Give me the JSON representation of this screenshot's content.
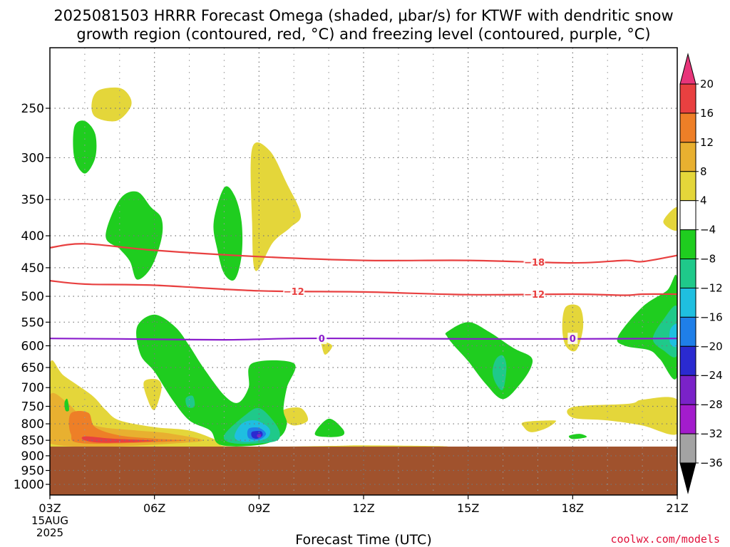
{
  "chart_data": {
    "type": "heatmap",
    "title_lines": [
      "2025081503 HRRR Forecast Omega (shaded, μbar/s) for KTWF with dendritic snow",
      "growth region (contoured, red, °C) and freezing level (contoured, purple, °C)"
    ],
    "xlabel": "Forecast Time (UTC)",
    "ylabel": "",
    "credit": "coolwx.com/models",
    "x_ticks": [
      "03Z",
      "06Z",
      "09Z",
      "12Z",
      "15Z",
      "18Z",
      "21Z"
    ],
    "x_hours": [
      3,
      6,
      9,
      12,
      15,
      18,
      21
    ],
    "x_date_label": [
      "15AUG",
      "2025"
    ],
    "xlim": [
      3,
      21
    ],
    "y_ticks": [
      250,
      300,
      350,
      400,
      450,
      500,
      550,
      600,
      650,
      700,
      750,
      800,
      850,
      900,
      950,
      1000
    ],
    "ylim_hpa": [
      200,
      1040
    ],
    "y_scale": "log-pressure (inverted)",
    "grid": true,
    "terrain": {
      "surface_pressure_hpa": 870,
      "color": "#a0522d"
    },
    "colorbar": {
      "levels": [
        20,
        16,
        12,
        8,
        4,
        -4,
        -8,
        -12,
        -16,
        -20,
        -24,
        -28,
        -32,
        -36
      ],
      "colors": [
        "#e8357a",
        "#e84040",
        "#ee7f27",
        "#e8b030",
        "#e4d63a",
        "#ffffff",
        "#1fcd1f",
        "#1fc98a",
        "#1fbfe0",
        "#1f7fe8",
        "#2a2ad0",
        "#7a22c8",
        "#a31ccc",
        "#a3a3a3",
        "#000000"
      ],
      "extend": "both"
    },
    "contours": [
      {
        "name": "dendritic snow growth -18",
        "color": "#e84040",
        "value": -18,
        "label": "-18",
        "points": [
          [
            3.0,
            418
          ],
          [
            4.0,
            412
          ],
          [
            6.0,
            422
          ],
          [
            9.0,
            432
          ],
          [
            12.0,
            438
          ],
          [
            15.0,
            438
          ],
          [
            18.0,
            442
          ],
          [
            19.5,
            438
          ],
          [
            20.0,
            440
          ],
          [
            21.0,
            430
          ]
        ]
      },
      {
        "name": "dendritic snow growth -12",
        "color": "#e84040",
        "value": -12,
        "label": "-12",
        "points": [
          [
            3.0,
            472
          ],
          [
            4.0,
            478
          ],
          [
            6.0,
            480
          ],
          [
            9.0,
            490
          ],
          [
            12.0,
            492
          ],
          [
            15.0,
            497
          ],
          [
            18.0,
            496
          ],
          [
            19.5,
            498
          ],
          [
            20.0,
            496
          ],
          [
            21.0,
            496
          ]
        ]
      },
      {
        "name": "freezing level 0",
        "color": "#8a1ccc",
        "value": 0,
        "label": "0",
        "points": [
          [
            3.0,
            584
          ],
          [
            5.0,
            585
          ],
          [
            8.0,
            587
          ],
          [
            10.0,
            584
          ],
          [
            12.0,
            584
          ],
          [
            15.0,
            585
          ],
          [
            18.0,
            585
          ],
          [
            21.0,
            584
          ]
        ]
      }
    ],
    "contour_labels": [
      {
        "value": "-18",
        "hour": 16.9,
        "hpa": 441,
        "color": "#e84040"
      },
      {
        "value": "-12",
        "hour": 10.0,
        "hpa": 491,
        "color": "#e84040"
      },
      {
        "value": "-12",
        "hour": 16.9,
        "hpa": 496,
        "color": "#e84040"
      },
      {
        "value": "0",
        "hour": 10.8,
        "hpa": 584,
        "color": "#8a1ccc"
      },
      {
        "value": "0",
        "hour": 18.0,
        "hpa": 584,
        "color": "#8a1ccc"
      }
    ],
    "omega_regions": [
      {
        "level": "4 to 8",
        "color": "#e4d63a",
        "points": [
          [
            4.4,
            234
          ],
          [
            5.0,
            232
          ],
          [
            5.3,
            240
          ],
          [
            5.3,
            250
          ],
          [
            4.9,
            262
          ],
          [
            4.3,
            258
          ],
          [
            4.2,
            245
          ]
        ]
      },
      {
        "level": "4 to 8",
        "color": "#e4d63a",
        "points": [
          [
            8.8,
            290
          ],
          [
            9.3,
            292
          ],
          [
            9.8,
            330
          ],
          [
            10.2,
            370
          ],
          [
            9.9,
            388
          ],
          [
            9.4,
            410
          ],
          [
            8.9,
            455
          ],
          [
            8.8,
            380
          ]
        ]
      },
      {
        "level": "4 to 8",
        "color": "#e4d63a",
        "points": [
          [
            21.0,
            360
          ],
          [
            20.6,
            380
          ],
          [
            21.0,
            392
          ]
        ]
      },
      {
        "level": "4 to 8",
        "color": "#e4d63a",
        "points": [
          [
            17.8,
            520
          ],
          [
            18.2,
            520
          ],
          [
            18.3,
            560
          ],
          [
            18.1,
            610
          ],
          [
            17.8,
            600
          ],
          [
            17.7,
            560
          ]
        ]
      },
      {
        "level": "4 to 8",
        "color": "#e4d63a",
        "points": [
          [
            10.8,
            590
          ],
          [
            11.1,
            600
          ],
          [
            10.9,
            620
          ],
          [
            10.8,
            600
          ]
        ]
      },
      {
        "level": "4 to 8",
        "color": "#e4d63a",
        "points": [
          [
            5.7,
            685
          ],
          [
            6.1,
            680
          ],
          [
            6.2,
            705
          ],
          [
            6.0,
            760
          ],
          [
            5.8,
            730
          ]
        ]
      },
      {
        "level": "4 to 8",
        "color": "#e4d63a",
        "points": [
          [
            9.7,
            760
          ],
          [
            10.2,
            755
          ],
          [
            10.4,
            790
          ],
          [
            10.0,
            805
          ],
          [
            9.7,
            785
          ]
        ]
      },
      {
        "level": "4 to 8",
        "color": "#e4d63a",
        "points": [
          [
            16.6,
            795
          ],
          [
            17.4,
            790
          ],
          [
            17.5,
            795
          ],
          [
            17.2,
            815
          ],
          [
            16.8,
            825
          ],
          [
            16.6,
            810
          ]
        ]
      },
      {
        "level": "4 to 8",
        "color": "#e4d63a",
        "points": [
          [
            18.0,
            752
          ],
          [
            19.6,
            743
          ],
          [
            20.0,
            732
          ],
          [
            21.0,
            732
          ],
          [
            21.0,
            830
          ],
          [
            20.0,
            805
          ],
          [
            19.0,
            790
          ],
          [
            18.0,
            782
          ]
        ]
      },
      {
        "level": "4 to 8",
        "color": "#e4d63a",
        "points": [
          [
            3.0,
            642
          ],
          [
            3.4,
            670
          ],
          [
            4.2,
            720
          ],
          [
            4.6,
            760
          ],
          [
            5.0,
            790
          ],
          [
            6.0,
            810
          ],
          [
            7.0,
            820
          ],
          [
            7.8,
            850
          ],
          [
            8.2,
            870
          ],
          [
            11.0,
            868
          ],
          [
            12.0,
            866
          ],
          [
            14.0,
            870
          ],
          [
            3.0,
            870
          ]
        ]
      },
      {
        "level": "8 to 12",
        "color": "#e8b030",
        "points": [
          [
            3.0,
            720
          ],
          [
            3.5,
            740
          ],
          [
            4.0,
            790
          ],
          [
            4.5,
            810
          ],
          [
            5.5,
            820
          ],
          [
            6.5,
            830
          ],
          [
            7.2,
            855
          ],
          [
            3.0,
            860
          ]
        ]
      },
      {
        "level": "12 to 16",
        "color": "#ee7f27",
        "points": [
          [
            3.6,
            770
          ],
          [
            4.1,
            768
          ],
          [
            4.3,
            810
          ],
          [
            5.0,
            835
          ],
          [
            6.0,
            845
          ],
          [
            6.8,
            852
          ],
          [
            4.0,
            860
          ],
          [
            3.6,
            830
          ]
        ]
      },
      {
        "level": "16 to 20",
        "color": "#e84040",
        "points": [
          [
            4.0,
            838
          ],
          [
            4.8,
            845
          ],
          [
            6.0,
            852
          ],
          [
            4.6,
            858
          ],
          [
            4.0,
            850
          ]
        ]
      },
      {
        "level": "-8 to -4",
        "color": "#1fcd1f",
        "points": [
          [
            3.7,
            268
          ],
          [
            4.0,
            262
          ],
          [
            4.3,
            275
          ],
          [
            4.3,
            300
          ],
          [
            4.0,
            318
          ],
          [
            3.7,
            300
          ]
        ]
      },
      {
        "level": "-8 to -4",
        "color": "#1fcd1f",
        "points": [
          [
            5.0,
            350
          ],
          [
            5.5,
            340
          ],
          [
            5.9,
            360
          ],
          [
            6.2,
            375
          ],
          [
            6.2,
            405
          ],
          [
            5.9,
            450
          ],
          [
            5.5,
            470
          ],
          [
            5.3,
            440
          ],
          [
            5.0,
            420
          ],
          [
            4.6,
            400
          ]
        ]
      },
      {
        "level": "-8 to -4",
        "color": "#1fcd1f",
        "points": [
          [
            8.0,
            335
          ],
          [
            8.3,
            345
          ],
          [
            8.5,
            380
          ],
          [
            8.5,
            430
          ],
          [
            8.3,
            470
          ],
          [
            8.0,
            460
          ],
          [
            7.8,
            420
          ],
          [
            7.7,
            380
          ]
        ]
      },
      {
        "level": "-8 to -4",
        "color": "#1fcd1f",
        "points": [
          [
            5.5,
            560
          ],
          [
            6.0,
            535
          ],
          [
            6.6,
            560
          ],
          [
            7.0,
            600
          ],
          [
            7.4,
            650
          ],
          [
            8.0,
            720
          ],
          [
            8.4,
            740
          ],
          [
            8.7,
            700
          ],
          [
            8.8,
            640
          ],
          [
            10.0,
            640
          ],
          [
            9.8,
            700
          ],
          [
            9.7,
            760
          ],
          [
            9.8,
            800
          ],
          [
            9.6,
            840
          ],
          [
            9.0,
            865
          ],
          [
            7.9,
            865
          ],
          [
            7.6,
            820
          ],
          [
            7.0,
            790
          ],
          [
            6.5,
            730
          ],
          [
            6.0,
            660
          ],
          [
            5.6,
            620
          ]
        ]
      },
      {
        "level": "-8 to -4",
        "color": "#1fcd1f",
        "points": [
          [
            10.6,
            830
          ],
          [
            11.0,
            785
          ],
          [
            11.4,
            815
          ],
          [
            11.4,
            835
          ],
          [
            11.0,
            840
          ]
        ]
      },
      {
        "level": "-8 to -4",
        "color": "#1fcd1f",
        "points": [
          [
            14.4,
            570
          ],
          [
            15.0,
            550
          ],
          [
            15.6,
            570
          ],
          [
            16.3,
            605
          ],
          [
            16.8,
            625
          ],
          [
            16.8,
            650
          ],
          [
            16.5,
            690
          ],
          [
            16.0,
            730
          ],
          [
            15.5,
            690
          ],
          [
            15.0,
            635
          ],
          [
            14.6,
            600
          ],
          [
            14.4,
            580
          ]
        ]
      },
      {
        "level": "-8 to -4",
        "color": "#1fcd1f",
        "points": [
          [
            17.9,
            836
          ],
          [
            18.2,
            830
          ],
          [
            18.4,
            840
          ],
          [
            18.0,
            846
          ]
        ]
      },
      {
        "level": "-8 to -4",
        "color": "#1fcd1f",
        "points": [
          [
            21.0,
            470
          ],
          [
            20.7,
            490
          ],
          [
            20.0,
            520
          ],
          [
            19.3,
            580
          ],
          [
            19.5,
            600
          ],
          [
            20.2,
            610
          ],
          [
            20.5,
            630
          ],
          [
            21.0,
            670
          ]
        ]
      },
      {
        "level": "-8 to -4",
        "color": "#1fcd1f",
        "points": [
          [
            3.42,
            740
          ],
          [
            3.5,
            730
          ],
          [
            3.55,
            760
          ],
          [
            3.45,
            762
          ]
        ]
      },
      {
        "level": "-12 to -8",
        "color": "#1fc98a",
        "points": [
          [
            8.6,
            775
          ],
          [
            9.0,
            755
          ],
          [
            9.4,
            790
          ],
          [
            9.6,
            830
          ],
          [
            9.4,
            855
          ],
          [
            8.3,
            860
          ],
          [
            8.0,
            835
          ]
        ]
      },
      {
        "level": "-12 to -8",
        "color": "#1fc98a",
        "points": [
          [
            15.8,
            630
          ],
          [
            16.0,
            622
          ],
          [
            16.1,
            650
          ],
          [
            16.0,
            705
          ],
          [
            15.8,
            690
          ],
          [
            15.7,
            660
          ]
        ]
      },
      {
        "level": "-12 to -8",
        "color": "#1fc98a",
        "points": [
          [
            20.3,
            585
          ],
          [
            20.6,
            545
          ],
          [
            21.0,
            520
          ],
          [
            21.0,
            620
          ],
          [
            20.6,
            610
          ]
        ]
      },
      {
        "level": "-12 to -8",
        "color": "#1fc98a",
        "points": [
          [
            6.9,
            728
          ],
          [
            7.1,
            722
          ],
          [
            7.15,
            750
          ],
          [
            6.95,
            752
          ]
        ]
      },
      {
        "level": "-16 to -12",
        "color": "#1fbfe0",
        "points": [
          [
            8.5,
            800
          ],
          [
            8.9,
            790
          ],
          [
            9.3,
            815
          ],
          [
            9.2,
            845
          ],
          [
            8.6,
            855
          ],
          [
            8.3,
            840
          ]
        ]
      },
      {
        "level": "-16 to -12",
        "color": "#1fbfe0",
        "points": [
          [
            20.8,
            565
          ],
          [
            21.0,
            555
          ],
          [
            21.0,
            600
          ],
          [
            20.8,
            595
          ]
        ]
      },
      {
        "level": "-20 to -16",
        "color": "#1f7fe8",
        "points": [
          [
            8.7,
            815
          ],
          [
            9.0,
            812
          ],
          [
            9.2,
            830
          ],
          [
            9.0,
            848
          ],
          [
            8.7,
            843
          ]
        ]
      },
      {
        "level": "-24 to -20",
        "color": "#2a2ad0",
        "points": [
          [
            8.8,
            824
          ],
          [
            9.05,
            822
          ],
          [
            9.1,
            835
          ],
          [
            8.95,
            845
          ],
          [
            8.8,
            840
          ]
        ]
      },
      {
        "level": "-28 to -24",
        "color": "#7a22c8",
        "points": [
          [
            8.95,
            832
          ],
          [
            9.05,
            831
          ],
          [
            9.05,
            840
          ],
          [
            8.95,
            840
          ]
        ]
      }
    ]
  }
}
